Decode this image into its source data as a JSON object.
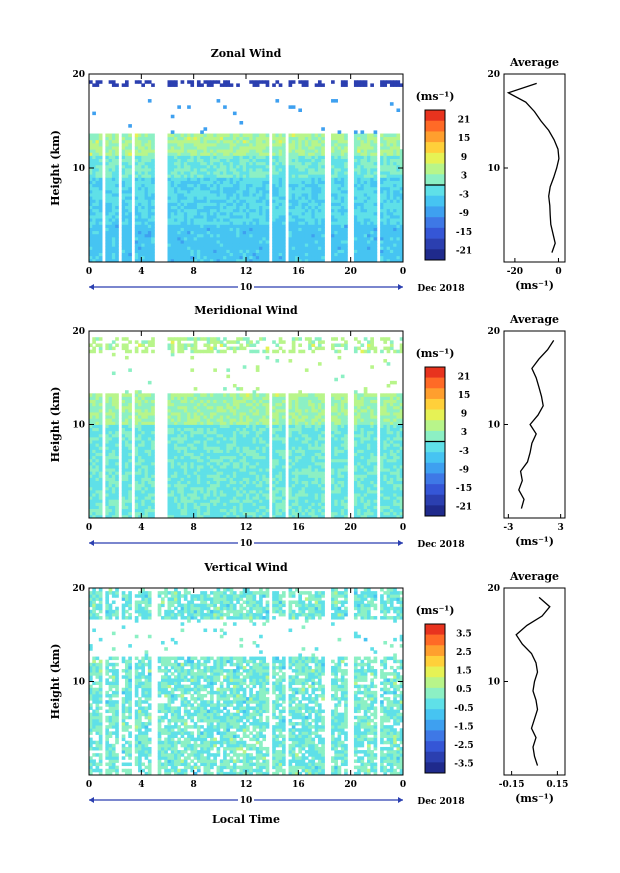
{
  "figure": {
    "day_label": "10",
    "month_label": "Dec 2018",
    "xlabel": "Local Time",
    "ylabel": "Height (km)",
    "unit_label": "(ms⁻¹)",
    "avg_unit_label": "(ms⁻¹)",
    "average_title": "Average"
  },
  "chart_data": [
    {
      "type": "heatmap",
      "title": "Zonal Wind",
      "xlabel": "",
      "ylabel": "Height (km)",
      "x_ticks": [
        "0",
        "4",
        "8",
        "12",
        "16",
        "20",
        "0"
      ],
      "y_ticks": [
        "10",
        "20"
      ],
      "xlim": [
        0,
        24
      ],
      "ylim": [
        0,
        20
      ],
      "colorbar": {
        "label": "(ms⁻¹)",
        "ticks": [
          "21",
          "15",
          "9",
          "3",
          "-3",
          "-9",
          "-15",
          "-21"
        ],
        "range": [
          -24,
          24
        ],
        "contour_at": 0
      },
      "data_gaps_hours": [
        [
          1.0,
          1.2
        ],
        [
          2.2,
          2.5
        ],
        [
          3.2,
          3.6
        ],
        [
          5.0,
          6.0
        ],
        [
          13.8,
          14.1
        ],
        [
          15.0,
          15.2
        ],
        [
          18.0,
          18.4
        ],
        [
          19.8,
          20.2
        ],
        [
          22.0,
          22.2
        ]
      ],
      "average_profile": {
        "title": "Average",
        "xlabel": "(ms⁻¹)",
        "x_ticks": [
          "-20",
          "0"
        ],
        "xlim": [
          -25,
          3
        ],
        "height": [
          1,
          2,
          3,
          4,
          5,
          6,
          7,
          8,
          9,
          10,
          11,
          12,
          13,
          14,
          15,
          16,
          17,
          18,
          19
        ],
        "value": [
          -3,
          -1.5,
          -2.5,
          -3.5,
          -3.8,
          -4,
          -4.5,
          -3.8,
          -2.2,
          -0.8,
          0.2,
          -0.2,
          -2,
          -4.5,
          -8,
          -11,
          -15,
          -23,
          -10
        ]
      }
    },
    {
      "type": "heatmap",
      "title": "Meridional Wind",
      "xlabel": "",
      "ylabel": "Height (km)",
      "x_ticks": [
        "0",
        "4",
        "8",
        "12",
        "16",
        "20",
        "0"
      ],
      "y_ticks": [
        "10",
        "20"
      ],
      "xlim": [
        0,
        24
      ],
      "ylim": [
        0,
        20
      ],
      "colorbar": {
        "label": "(ms⁻¹)",
        "ticks": [
          "21",
          "15",
          "9",
          "3",
          "-3",
          "-9",
          "-15",
          "-21"
        ],
        "range": [
          -24,
          24
        ],
        "contour_at": 0
      },
      "data_gaps_hours": [
        [
          1.0,
          1.2
        ],
        [
          2.2,
          2.5
        ],
        [
          3.2,
          3.6
        ],
        [
          5.0,
          6.0
        ],
        [
          13.8,
          14.1
        ],
        [
          15.0,
          15.2
        ],
        [
          18.0,
          18.4
        ],
        [
          19.8,
          20.2
        ],
        [
          22.0,
          22.2
        ]
      ],
      "average_profile": {
        "title": "Average",
        "xlabel": "(ms⁻¹)",
        "x_ticks": [
          "-3",
          "3"
        ],
        "xlim": [
          -3.5,
          3.5
        ],
        "height": [
          1,
          2,
          3,
          4,
          5,
          6,
          7,
          8,
          9,
          10,
          11,
          12,
          13,
          14,
          15,
          16,
          17,
          18,
          19
        ],
        "value": [
          -1.5,
          -1.2,
          -1.8,
          -1.4,
          -1.6,
          -0.8,
          -0.5,
          -0.3,
          0.2,
          -0.5,
          0.4,
          1.0,
          0.8,
          0.5,
          0.2,
          -0.3,
          0.5,
          1.5,
          2.2
        ]
      }
    },
    {
      "type": "heatmap",
      "title": "Vertical Wind",
      "xlabel": "Local Time",
      "ylabel": "Height (km)",
      "x_ticks": [
        "0",
        "4",
        "8",
        "12",
        "16",
        "20",
        "0"
      ],
      "y_ticks": [
        "10",
        "20"
      ],
      "xlim": [
        0,
        24
      ],
      "ylim": [
        0,
        20
      ],
      "colorbar": {
        "label": "(ms⁻¹)",
        "ticks": [
          "3.5",
          "2.5",
          "1.5",
          "0.5",
          "-0.5",
          "-1.5",
          "-2.5",
          "-3.5"
        ],
        "range": [
          -4,
          4
        ]
      },
      "data_gaps_hours": [
        [
          1.0,
          1.2
        ],
        [
          2.2,
          2.5
        ],
        [
          3.2,
          3.6
        ],
        [
          4.8,
          5.2
        ],
        [
          13.8,
          14.1
        ],
        [
          15.0,
          15.2
        ],
        [
          18.0,
          18.4
        ],
        [
          19.8,
          20.2
        ],
        [
          22.0,
          22.2
        ]
      ],
      "average_profile": {
        "title": "Average",
        "xlabel": "(ms⁻¹)",
        "x_ticks": [
          "-0.15",
          "0.15"
        ],
        "xlim": [
          -0.2,
          0.2
        ],
        "height": [
          1,
          2,
          3,
          4,
          5,
          6,
          7,
          8,
          9,
          10,
          11,
          12,
          13,
          14,
          15,
          16,
          17,
          18,
          19
        ],
        "value": [
          0.02,
          0.0,
          -0.01,
          0.01,
          -0.02,
          0.0,
          0.02,
          0.01,
          -0.01,
          0.0,
          0.02,
          0.01,
          -0.02,
          -0.08,
          -0.12,
          -0.05,
          0.05,
          0.1,
          0.03
        ]
      }
    }
  ]
}
